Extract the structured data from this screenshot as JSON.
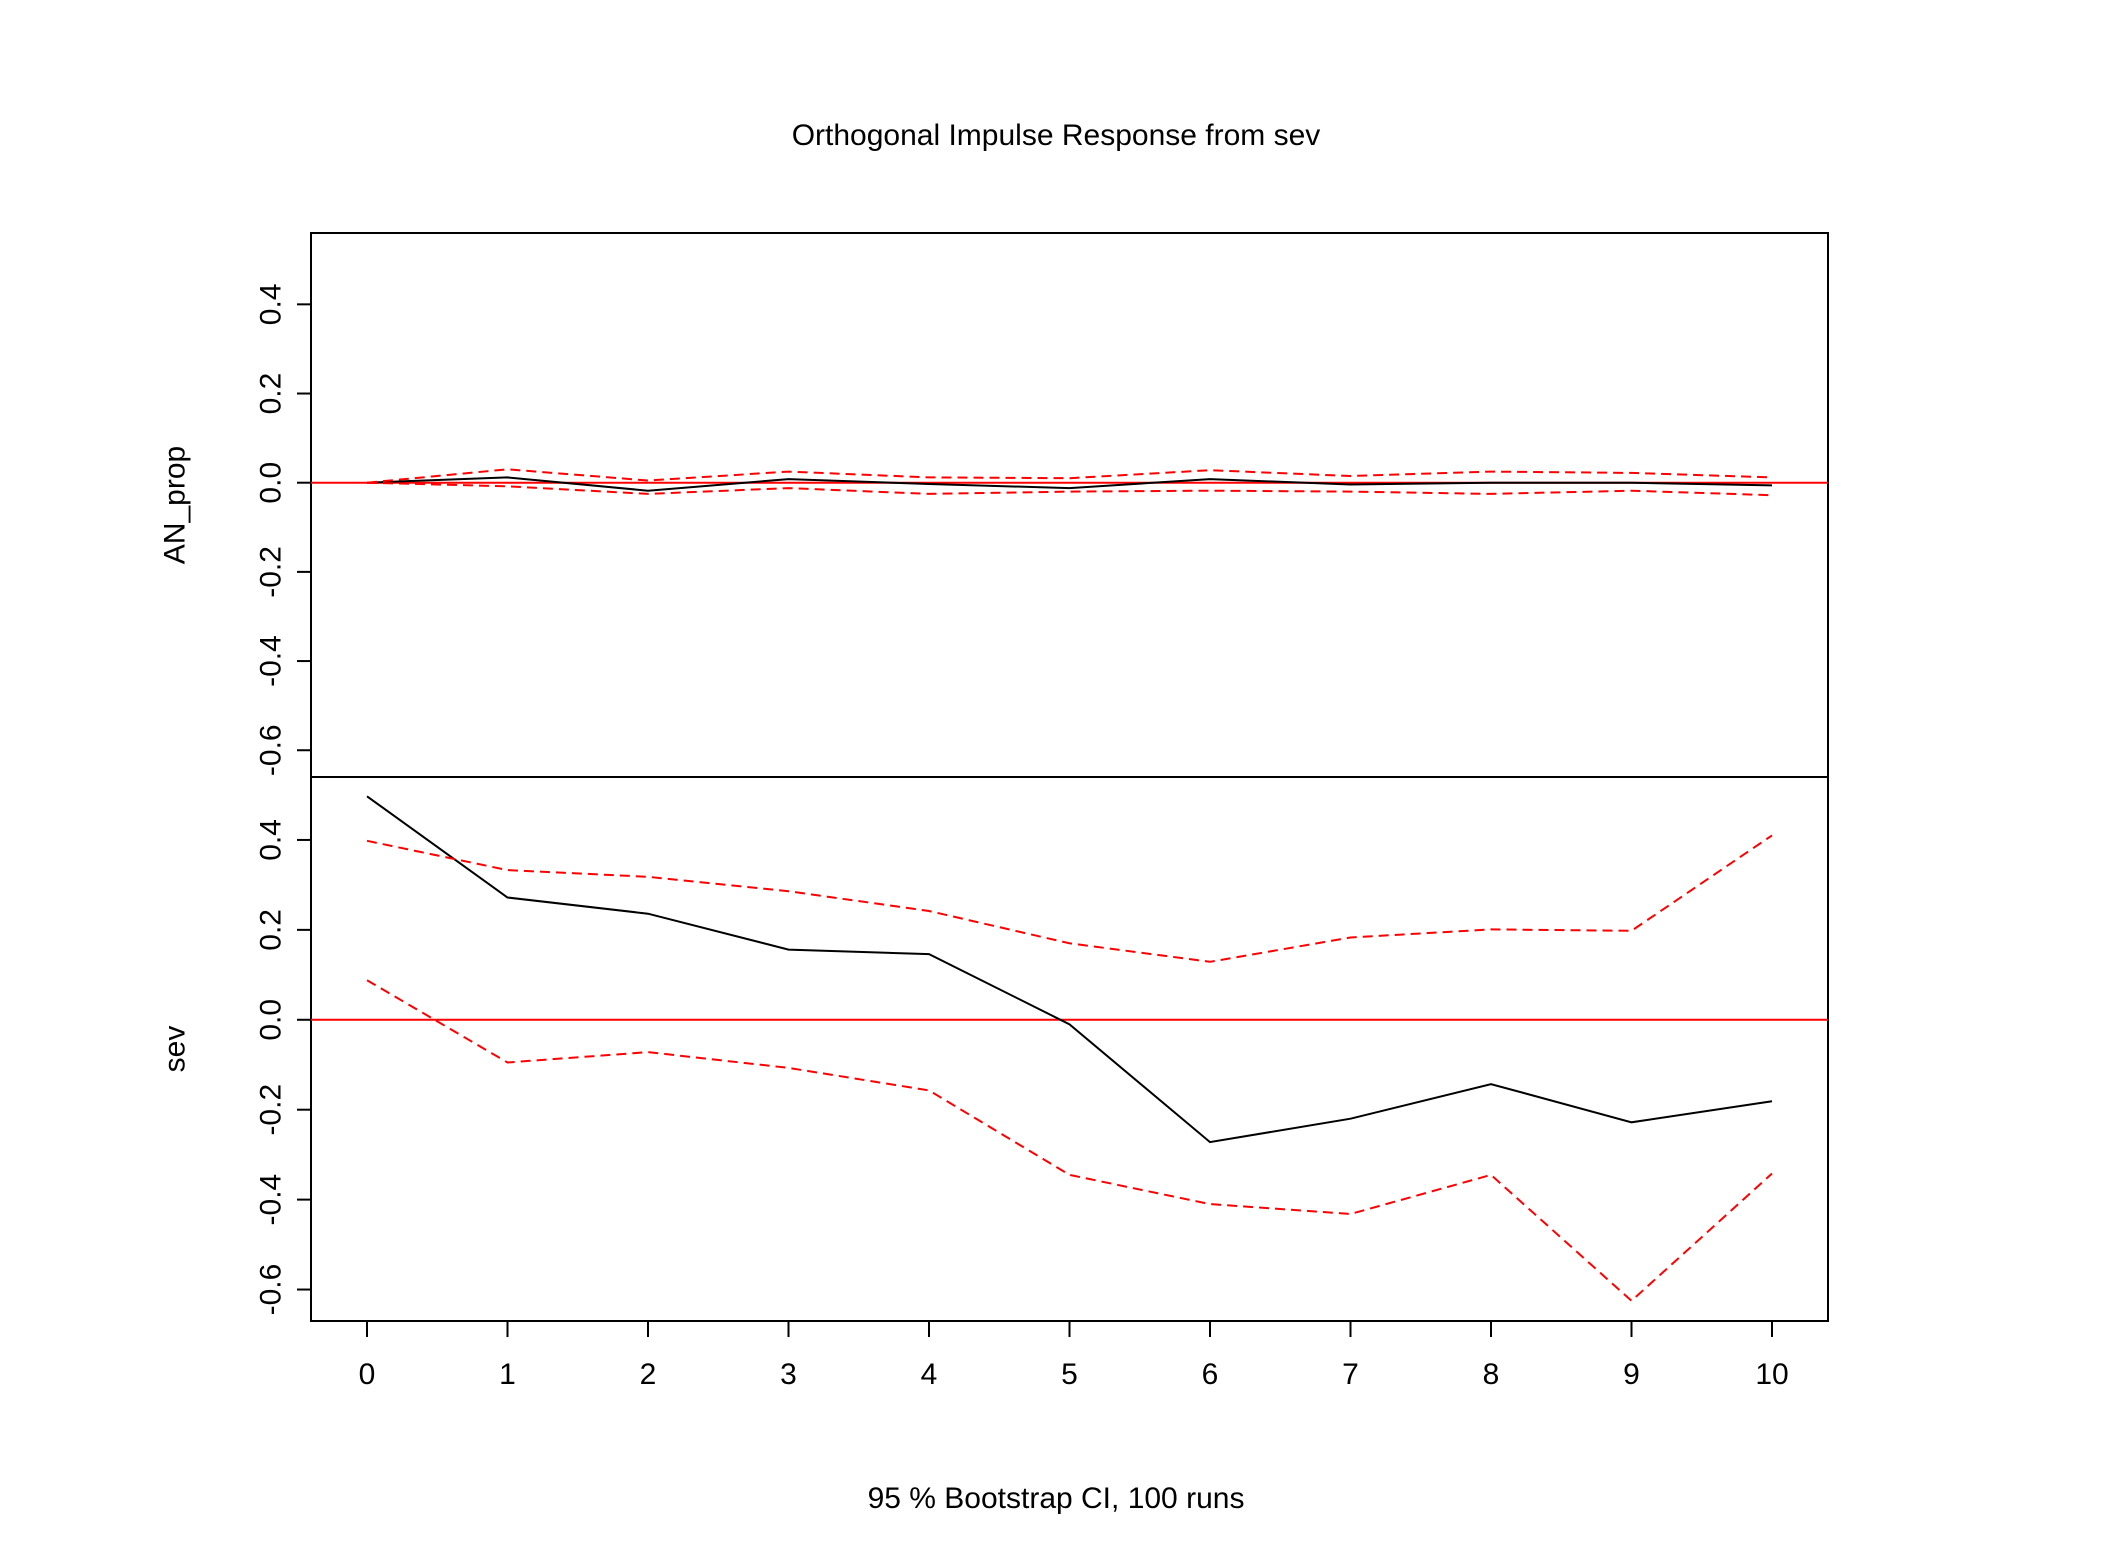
{
  "chart_data": {
    "type": "line",
    "title": "Orthogonal Impulse Response from sev",
    "xlabel": "95 % Bootstrap CI,  100 runs",
    "x": [
      0,
      1,
      2,
      3,
      4,
      5,
      6,
      7,
      8,
      9,
      10
    ],
    "xlim": [
      0,
      10
    ],
    "grid": false,
    "legend": "none",
    "colors": {
      "response": "#000000",
      "ci": "#ff0000",
      "zero_line": "#ff0000",
      "frame": "#000000"
    },
    "panels": [
      {
        "ylabel": "AN_prop",
        "ylim": [
          -0.66,
          0.56
        ],
        "yticks": [
          -0.6,
          -0.4,
          -0.2,
          0.0,
          0.2,
          0.4
        ],
        "ytick_labels": [
          "-0.6",
          "-0.4",
          "-0.2",
          "0.0",
          "0.2",
          "0.4"
        ],
        "series": [
          {
            "role": "response",
            "values": [
              0.0,
              0.012,
              -0.018,
              0.008,
              -0.003,
              -0.012,
              0.008,
              -0.004,
              0.0,
              0.0,
              -0.006
            ]
          },
          {
            "role": "upper",
            "values": [
              0.0,
              0.03,
              0.005,
              0.025,
              0.012,
              0.01,
              0.028,
              0.015,
              0.025,
              0.022,
              0.012
            ]
          },
          {
            "role": "lower",
            "values": [
              0.0,
              -0.008,
              -0.025,
              -0.012,
              -0.025,
              -0.02,
              -0.018,
              -0.02,
              -0.025,
              -0.018,
              -0.028
            ]
          }
        ]
      },
      {
        "ylabel": "sev",
        "ylim": [
          -0.67,
          0.54
        ],
        "yticks": [
          -0.6,
          -0.4,
          -0.2,
          0.0,
          0.2,
          0.4
        ],
        "ytick_labels": [
          "-0.6",
          "-0.4",
          "-0.2",
          "0.0",
          "0.2",
          "0.4"
        ],
        "series": [
          {
            "role": "response",
            "values": [
              0.497,
              0.272,
              0.236,
              0.156,
              0.146,
              -0.01,
              -0.272,
              -0.22,
              -0.143,
              -0.228,
              -0.181
            ]
          },
          {
            "role": "upper",
            "values": [
              0.398,
              0.333,
              0.318,
              0.286,
              0.242,
              0.17,
              0.129,
              0.183,
              0.201,
              0.198,
              0.41
            ]
          },
          {
            "role": "lower",
            "values": [
              0.088,
              -0.095,
              -0.072,
              -0.107,
              -0.157,
              -0.345,
              -0.41,
              -0.432,
              -0.345,
              -0.625,
              -0.342
            ]
          }
        ]
      }
    ]
  }
}
